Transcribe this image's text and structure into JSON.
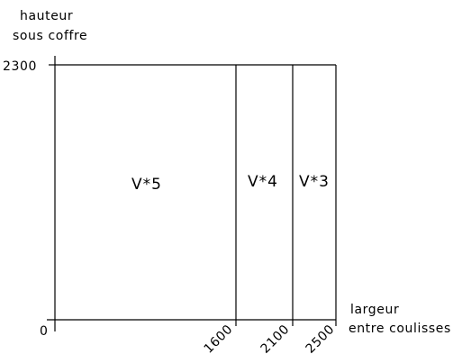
{
  "y_axis": {
    "label_line1": "hauteur",
    "label_line2": "sous coffre",
    "top_value": "2300",
    "origin_value": "0"
  },
  "x_axis": {
    "label_line1": "largeur",
    "label_line2": "entre coulisses",
    "ticks": [
      "1600",
      "2100",
      "2500"
    ]
  },
  "zones": [
    {
      "label": "V*5"
    },
    {
      "label": "V*4"
    },
    {
      "label": "V*3"
    }
  ]
}
